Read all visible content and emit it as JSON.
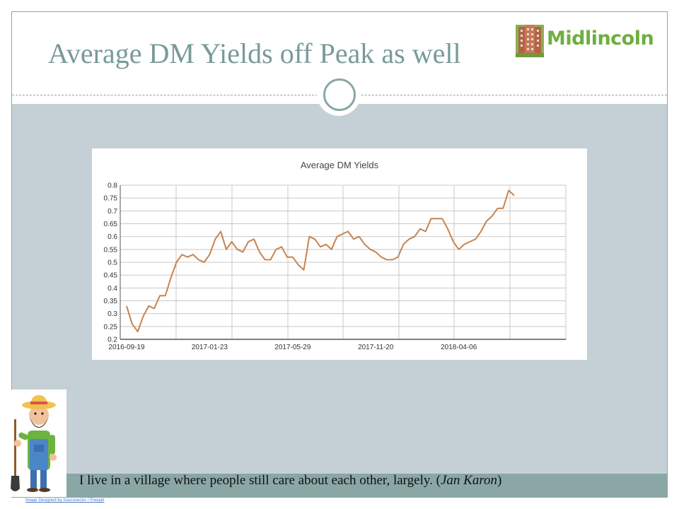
{
  "slide": {
    "title": "Average DM Yields off Peak as well",
    "logo_text": "Midlincoln",
    "quote_text": "I live in a village where people still care about each other, largely. (",
    "quote_author": "Jan Karon",
    "quote_close": ")",
    "image_credit": "Image Designed by macrovector / Freepik",
    "colors": {
      "accent": "#789a99",
      "frame": "#8aa7a6",
      "content_bg": "#c5d0d6",
      "logo_green": "#6fae3f",
      "line": "#c8834f"
    }
  },
  "chart_data": {
    "type": "line",
    "title": "Average DM Yields",
    "xlabel": "",
    "ylabel": "",
    "ylim": [
      0.2,
      0.8
    ],
    "yticks": [
      0.2,
      0.25,
      0.3,
      0.35,
      0.4,
      0.45,
      0.5,
      0.55,
      0.6,
      0.65,
      0.7,
      0.75,
      0.8
    ],
    "ytick_labels": [
      "0.2",
      "0.25",
      "0.3",
      "0.35",
      "0.4",
      "0.45",
      "0.5",
      "0.55",
      "0.6",
      "0.65",
      "0.7",
      "0.75",
      "0.8"
    ],
    "xtick_labels": [
      "2016-09-19",
      "2017-01-23",
      "2017-05-29",
      "2017-11-20",
      "2018-04-06"
    ],
    "grid": true,
    "series": [
      {
        "values": [
          0.33,
          0.26,
          0.23,
          0.29,
          0.33,
          0.32,
          0.37,
          0.37,
          0.44,
          0.5,
          0.53,
          0.52,
          0.53,
          0.51,
          0.5,
          0.53,
          0.59,
          0.62,
          0.55,
          0.58,
          0.55,
          0.54,
          0.58,
          0.59,
          0.54,
          0.51,
          0.51,
          0.55,
          0.56,
          0.52,
          0.52,
          0.49,
          0.47,
          0.6,
          0.59,
          0.56,
          0.57,
          0.55,
          0.6,
          0.61,
          0.62,
          0.59,
          0.6,
          0.57,
          0.55,
          0.54,
          0.52,
          0.51,
          0.51,
          0.52,
          0.57,
          0.59,
          0.6,
          0.63,
          0.62,
          0.67,
          0.67,
          0.67,
          0.63,
          0.58,
          0.55,
          0.57,
          0.58,
          0.59,
          0.62,
          0.66,
          0.68,
          0.71,
          0.71,
          0.78,
          0.76
        ]
      }
    ]
  }
}
